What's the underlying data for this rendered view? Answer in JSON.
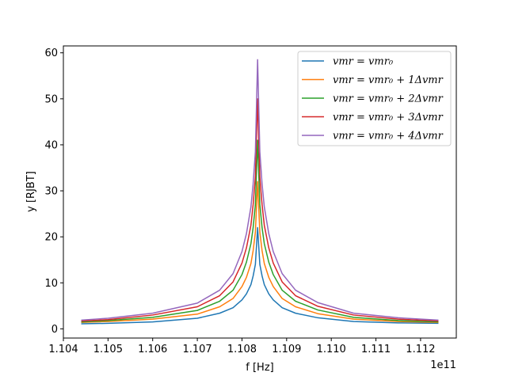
{
  "chart_data": {
    "type": "line",
    "title": "",
    "xlabel": "f [Hz]",
    "ylabel": "y [RJBT]",
    "x_offset_label": "1e11",
    "xlim": [
      110.4,
      111.28
    ],
    "ylim": [
      -2,
      61.5
    ],
    "x_unit_scale": 1000000000.0,
    "x_tick_values": [
      110.4,
      110.5,
      110.6,
      110.7,
      110.8,
      110.9,
      111.0,
      111.1,
      111.2
    ],
    "x_tick_labels": [
      "1.104",
      "1.105",
      "1.106",
      "1.107",
      "1.108",
      "1.109",
      "1.110",
      "1.111",
      "1.112"
    ],
    "y_tick_values": [
      0,
      10,
      20,
      30,
      40,
      50,
      60
    ],
    "y_tick_labels": [
      "0",
      "10",
      "20",
      "30",
      "40",
      "50",
      "60"
    ],
    "grid": false,
    "legend_position": "top-right",
    "x": [
      110.44,
      110.5,
      110.6,
      110.7,
      110.75,
      110.78,
      110.8,
      110.81,
      110.82,
      110.825,
      110.83,
      110.835,
      110.84,
      110.845,
      110.85,
      110.86,
      110.87,
      110.89,
      110.92,
      110.97,
      111.05,
      111.15,
      111.24
    ],
    "series": [
      {
        "name": "vmr = vmr₀",
        "color": "#1f77b4",
        "values": [
          1.1,
          1.2,
          1.5,
          2.3,
          3.4,
          4.6,
          6.3,
          7.6,
          9.6,
          11.5,
          14.0,
          22.0,
          14.0,
          11.5,
          9.6,
          7.6,
          6.3,
          4.6,
          3.4,
          2.4,
          1.6,
          1.3,
          1.2
        ]
      },
      {
        "name": "vmr = vmr₀ + 1Δvmr",
        "color": "#ff7f0e",
        "values": [
          1.4,
          1.6,
          2.1,
          3.2,
          4.8,
          6.6,
          9.2,
          11.2,
          14.2,
          17.0,
          21.0,
          32.0,
          21.0,
          17.0,
          14.2,
          11.2,
          9.2,
          6.6,
          4.8,
          3.3,
          2.1,
          1.6,
          1.4
        ]
      },
      {
        "name": "vmr = vmr₀ + 2Δvmr",
        "color": "#2ca02c",
        "values": [
          1.5,
          1.8,
          2.5,
          4.0,
          6.0,
          8.4,
          11.8,
          14.5,
          18.5,
          22.0,
          27.0,
          41.0,
          27.0,
          22.0,
          18.5,
          14.5,
          11.8,
          8.4,
          6.0,
          4.1,
          2.5,
          1.8,
          1.5
        ]
      },
      {
        "name": "vmr = vmr₀ + 3Δvmr",
        "color": "#d62728",
        "values": [
          1.7,
          2.0,
          3.0,
          4.8,
          7.2,
          10.2,
          14.3,
          17.6,
          22.5,
          27.0,
          33.0,
          50.0,
          33.0,
          27.0,
          22.5,
          17.6,
          14.3,
          10.2,
          7.2,
          4.9,
          3.0,
          2.1,
          1.7
        ]
      },
      {
        "name": "vmr = vmr₀ + 4Δvmr",
        "color": "#9467bd",
        "values": [
          1.9,
          2.3,
          3.4,
          5.6,
          8.4,
          12.0,
          16.8,
          20.7,
          26.5,
          31.5,
          38.5,
          58.5,
          38.5,
          31.5,
          26.5,
          20.7,
          16.8,
          12.0,
          8.4,
          5.7,
          3.4,
          2.4,
          1.9
        ]
      }
    ]
  }
}
